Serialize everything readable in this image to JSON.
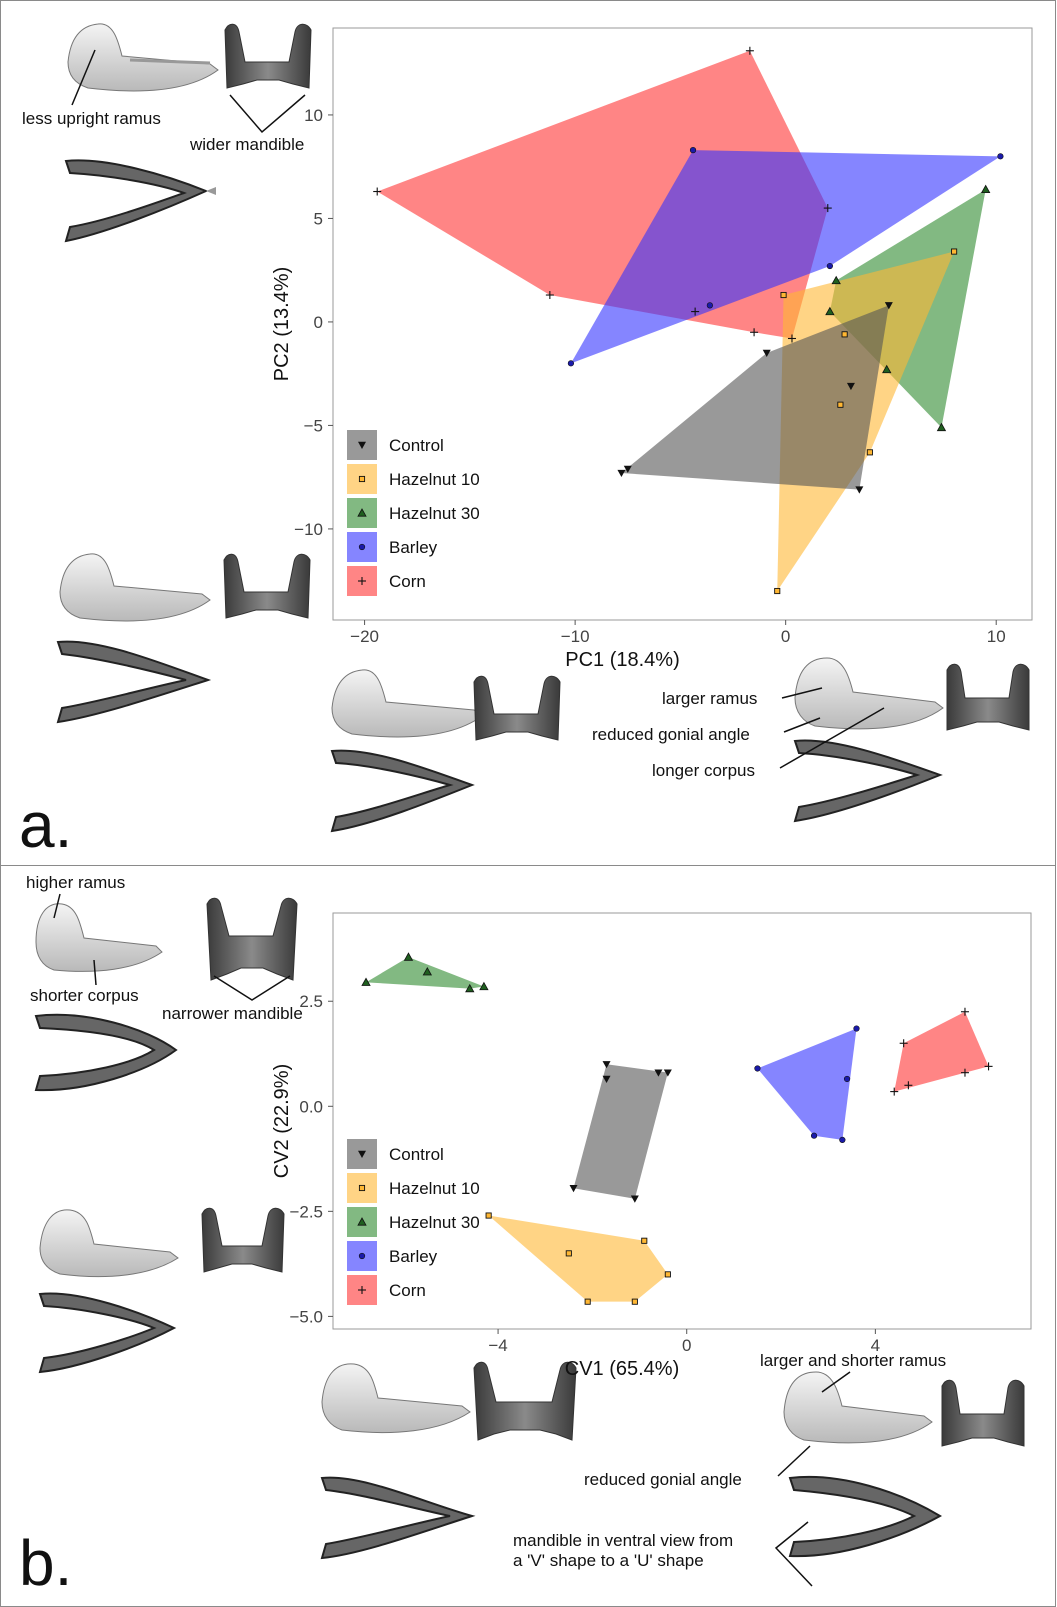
{
  "panels": {
    "a": {
      "letter": "a.",
      "annotations": {
        "less_upright_ramus": "less upright ramus",
        "wider_mandible": "wider mandible",
        "larger_ramus": "larger ramus",
        "reduced_gonial_angle": "reduced gonial angle",
        "longer_corpus": "longer corpus"
      }
    },
    "b": {
      "letter": "b.",
      "annotations": {
        "higher_ramus": "higher ramus",
        "shorter_corpus": "shorter corpus",
        "narrower_mandible": "narrower mandible",
        "larger_shorter_ramus": "larger and shorter ramus",
        "reduced_gonial_angle": "reduced gonial angle",
        "v_to_u_line1": "mandible in ventral view from",
        "v_to_u_line2": "a 'V' shape to a 'U' shape"
      }
    }
  },
  "legend": [
    {
      "key": "control",
      "label": "Control",
      "color": "#555555",
      "marker": "triangle-down"
    },
    {
      "key": "hazelnut10",
      "label": "Hazelnut 10",
      "color": "#FFB733",
      "marker": "square"
    },
    {
      "key": "hazelnut30",
      "label": "Hazelnut 30",
      "color": "#2E8B2E",
      "marker": "triangle-up"
    },
    {
      "key": "barley",
      "label": "Barley",
      "color": "#3333FF",
      "marker": "circle"
    },
    {
      "key": "corn",
      "label": "Corn",
      "color": "#FF3333",
      "marker": "plus"
    }
  ],
  "chart_data": [
    {
      "type": "scatter",
      "xlabel": "PC1 (18.4%)",
      "ylabel": "PC2 (13.4%)",
      "xlim": [
        -21.5,
        11.7
      ],
      "ylim": [
        -14.4,
        14.2
      ],
      "xticks": [
        -20,
        -10,
        0,
        10
      ],
      "yticks": [
        -10,
        -5,
        0,
        5,
        10
      ],
      "xtick_labels": [
        "−20",
        "−10",
        "0",
        "10"
      ],
      "ytick_labels": [
        "−10",
        "−5",
        "0",
        "5",
        "10"
      ],
      "grid": false,
      "legend_position": "bottom-left",
      "hulls": true,
      "series": [
        {
          "key": "corn",
          "points": [
            [
              -19.4,
              6.3
            ],
            [
              -1.7,
              13.1
            ],
            [
              2.0,
              5.5
            ],
            [
              -1.5,
              -0.5
            ],
            [
              -11.2,
              1.3
            ],
            [
              0.3,
              -0.8
            ],
            [
              -4.3,
              0.5
            ]
          ]
        },
        {
          "key": "barley",
          "points": [
            [
              -4.4,
              8.3
            ],
            [
              10.2,
              8.0
            ],
            [
              2.1,
              2.7
            ],
            [
              -3.6,
              0.8
            ],
            [
              -10.2,
              -2.0
            ]
          ]
        },
        {
          "key": "hazelnut30",
          "points": [
            [
              9.5,
              6.4
            ],
            [
              7.4,
              -5.1
            ],
            [
              4.8,
              -2.3
            ],
            [
              2.4,
              2.0
            ],
            [
              2.1,
              0.5
            ]
          ]
        },
        {
          "key": "hazelnut10",
          "points": [
            [
              -0.4,
              -13.0
            ],
            [
              4.0,
              -6.3
            ],
            [
              8.0,
              3.4
            ],
            [
              -0.1,
              1.3
            ],
            [
              2.8,
              -0.6
            ],
            [
              2.6,
              -4.0
            ]
          ]
        },
        {
          "key": "control",
          "points": [
            [
              -7.8,
              -7.3
            ],
            [
              -7.5,
              -7.1
            ],
            [
              -0.9,
              -1.5
            ],
            [
              4.9,
              0.8
            ],
            [
              3.5,
              -8.1
            ],
            [
              3.1,
              -3.1
            ]
          ]
        }
      ]
    },
    {
      "type": "scatter",
      "xlabel": "CV1 (65.4%)",
      "ylabel": "CV2 (22.9%)",
      "xlim": [
        -7.5,
        7.3
      ],
      "ylim": [
        -5.3,
        4.6
      ],
      "xticks": [
        -4,
        0,
        4
      ],
      "yticks": [
        -5.0,
        -2.5,
        0.0,
        2.5
      ],
      "xtick_labels": [
        "−4",
        "0",
        "4"
      ],
      "ytick_labels": [
        "−5.0",
        "−2.5",
        "0.0",
        "2.5"
      ],
      "grid": false,
      "legend_position": "bottom-left",
      "hulls": true,
      "series": [
        {
          "key": "hazelnut30",
          "points": [
            [
              -6.8,
              2.95
            ],
            [
              -5.9,
              3.55
            ],
            [
              -5.5,
              3.2
            ],
            [
              -4.6,
              2.8
            ],
            [
              -4.3,
              2.85
            ]
          ]
        },
        {
          "key": "control",
          "points": [
            [
              -1.7,
              1.0
            ],
            [
              -1.7,
              0.65
            ],
            [
              -0.6,
              0.8
            ],
            [
              -0.4,
              0.8
            ],
            [
              -2.4,
              -1.95
            ],
            [
              -1.1,
              -2.2
            ]
          ]
        },
        {
          "key": "hazelnut10",
          "points": [
            [
              -4.2,
              -2.6
            ],
            [
              -2.5,
              -3.5
            ],
            [
              -2.1,
              -4.65
            ],
            [
              -0.9,
              -3.2
            ],
            [
              -0.4,
              -4.0
            ],
            [
              -1.1,
              -4.65
            ]
          ]
        },
        {
          "key": "barley",
          "points": [
            [
              1.5,
              0.9
            ],
            [
              3.6,
              1.85
            ],
            [
              3.4,
              0.65
            ],
            [
              2.7,
              -0.7
            ],
            [
              3.3,
              -0.8
            ]
          ]
        },
        {
          "key": "corn",
          "points": [
            [
              4.6,
              1.5
            ],
            [
              5.9,
              2.25
            ],
            [
              6.4,
              0.95
            ],
            [
              5.9,
              0.8
            ],
            [
              4.7,
              0.5
            ],
            [
              4.4,
              0.35
            ]
          ]
        }
      ]
    }
  ]
}
